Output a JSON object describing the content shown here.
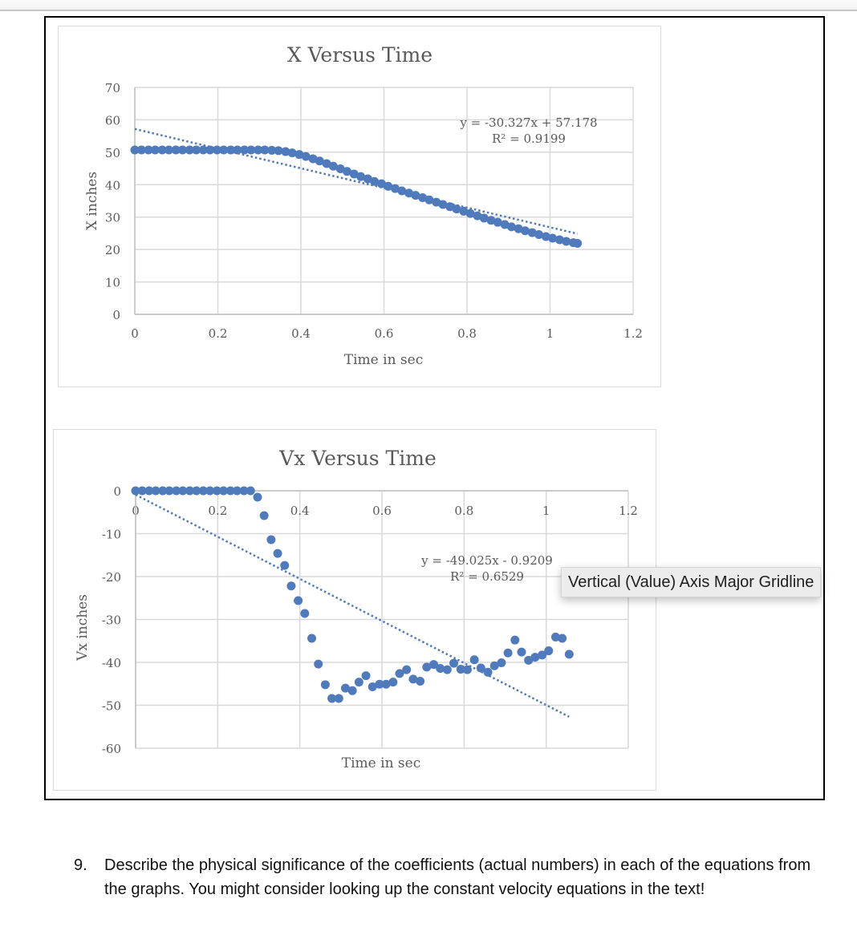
{
  "tooltip": {
    "text": "Vertical (Value) Axis Major Gridline"
  },
  "question": {
    "number": "9.",
    "text": "Describe the physical significance of the coefficients (actual numbers) in each of the equations from the graphs. You might consider looking up the constant velocity equations in the text!"
  },
  "colors": {
    "marker": "#4f7bbd",
    "gridline": "#d9d9d9",
    "axis_text": "#595959",
    "frame": "#d9d9d9"
  },
  "chart_data": [
    {
      "type": "scatter",
      "title": "X Versus Time",
      "xlabel": "Time in sec",
      "ylabel": "X inches",
      "xlim": [
        0,
        1.2
      ],
      "ylim": [
        0,
        70
      ],
      "xticks": [
        "0",
        "0.2",
        "0.4",
        "0.6",
        "0.8",
        "1",
        "1.2"
      ],
      "yticks": [
        "0",
        "10",
        "20",
        "30",
        "40",
        "50",
        "60",
        "70"
      ],
      "grid": true,
      "legend": "none",
      "trendline": {
        "type": "linear",
        "slope": -30.327,
        "intercept": 57.178,
        "equation": "y = -30.327x + 57.178",
        "r2_label": "R² = 0.9199"
      },
      "series": [
        {
          "name": "X",
          "x": [
            0.0,
            0.016,
            0.033,
            0.049,
            0.066,
            0.082,
            0.099,
            0.115,
            0.132,
            0.148,
            0.165,
            0.181,
            0.198,
            0.214,
            0.231,
            0.247,
            0.264,
            0.28,
            0.297,
            0.313,
            0.33,
            0.346,
            0.363,
            0.379,
            0.396,
            0.412,
            0.429,
            0.445,
            0.462,
            0.478,
            0.495,
            0.511,
            0.528,
            0.544,
            0.561,
            0.577,
            0.594,
            0.61,
            0.627,
            0.643,
            0.66,
            0.676,
            0.693,
            0.709,
            0.726,
            0.742,
            0.759,
            0.775,
            0.792,
            0.808,
            0.825,
            0.841,
            0.858,
            0.874,
            0.891,
            0.907,
            0.924,
            0.94,
            0.957,
            0.973,
            0.99,
            1.006,
            1.023,
            1.039,
            1.056,
            1.066
          ],
          "y": [
            50.7,
            50.7,
            50.7,
            50.7,
            50.7,
            50.7,
            50.7,
            50.7,
            50.7,
            50.7,
            50.7,
            50.7,
            50.7,
            50.7,
            50.7,
            50.7,
            50.7,
            50.7,
            50.7,
            50.7,
            50.6,
            50.5,
            50.2,
            49.8,
            49.3,
            48.7,
            48.0,
            47.3,
            46.5,
            45.7,
            44.9,
            44.1,
            43.3,
            42.5,
            41.8,
            41.0,
            40.3,
            39.5,
            38.8,
            38.1,
            37.4,
            36.7,
            36.0,
            35.3,
            34.6,
            33.9,
            33.2,
            32.5,
            31.8,
            31.1,
            30.4,
            29.7,
            29.0,
            28.4,
            27.7,
            27.0,
            26.4,
            25.8,
            25.2,
            24.6,
            24.0,
            23.5,
            23.0,
            22.5,
            22.1,
            21.9
          ]
        }
      ]
    },
    {
      "type": "scatter",
      "title": "Vx Versus Time",
      "xlabel": "Time in sec",
      "ylabel": "Vx inches",
      "xlim": [
        0,
        1.2
      ],
      "ylim": [
        -60,
        0
      ],
      "xticks": [
        "0",
        "0.2",
        "0.4",
        "0.6",
        "0.8",
        "1",
        "1.2"
      ],
      "yticks": [
        "0",
        "-10",
        "-20",
        "-30",
        "-40",
        "-50",
        "-60"
      ],
      "grid": true,
      "legend": "none",
      "trendline": {
        "type": "linear",
        "slope": -49.025,
        "intercept": -0.9209,
        "equation": "y = -49.025x - 0.9209",
        "r2_label": "R² = 0.6529"
      },
      "series": [
        {
          "name": "Vx",
          "x": [
            0.0,
            0.016,
            0.033,
            0.049,
            0.066,
            0.082,
            0.099,
            0.115,
            0.132,
            0.148,
            0.165,
            0.181,
            0.198,
            0.214,
            0.231,
            0.247,
            0.264,
            0.28,
            0.297,
            0.313,
            0.33,
            0.346,
            0.363,
            0.379,
            0.396,
            0.412,
            0.429,
            0.445,
            0.462,
            0.478,
            0.495,
            0.511,
            0.528,
            0.544,
            0.561,
            0.577,
            0.594,
            0.61,
            0.627,
            0.643,
            0.66,
            0.676,
            0.693,
            0.709,
            0.726,
            0.742,
            0.759,
            0.775,
            0.792,
            0.808,
            0.825,
            0.841,
            0.858,
            0.874,
            0.891,
            0.907,
            0.924,
            0.94,
            0.957,
            0.973,
            0.99,
            1.006,
            1.023,
            1.039,
            1.056
          ],
          "y": [
            0,
            0,
            0,
            0,
            0,
            0,
            0,
            0,
            0,
            0,
            0,
            0,
            0,
            0,
            0,
            0,
            0,
            0,
            -1.5,
            -5.8,
            -11.4,
            -14.6,
            -17.4,
            -22.2,
            -25.6,
            -28.6,
            -34.4,
            -40.4,
            -45.2,
            -48.4,
            -48.4,
            -46.0,
            -46.6,
            -44.6,
            -43.1,
            -45.7,
            -45.1,
            -45.1,
            -44.6,
            -42.6,
            -41.7,
            -43.9,
            -44.4,
            -41.1,
            -40.5,
            -41.4,
            -41.7,
            -40.2,
            -41.6,
            -41.7,
            -39.4,
            -41.3,
            -42.3,
            -40.8,
            -40.1,
            -37.8,
            -34.8,
            -37.6,
            -39.5,
            -38.8,
            -38.3,
            -37.3,
            -34.1,
            -34.4,
            -38.1
          ]
        }
      ]
    }
  ]
}
